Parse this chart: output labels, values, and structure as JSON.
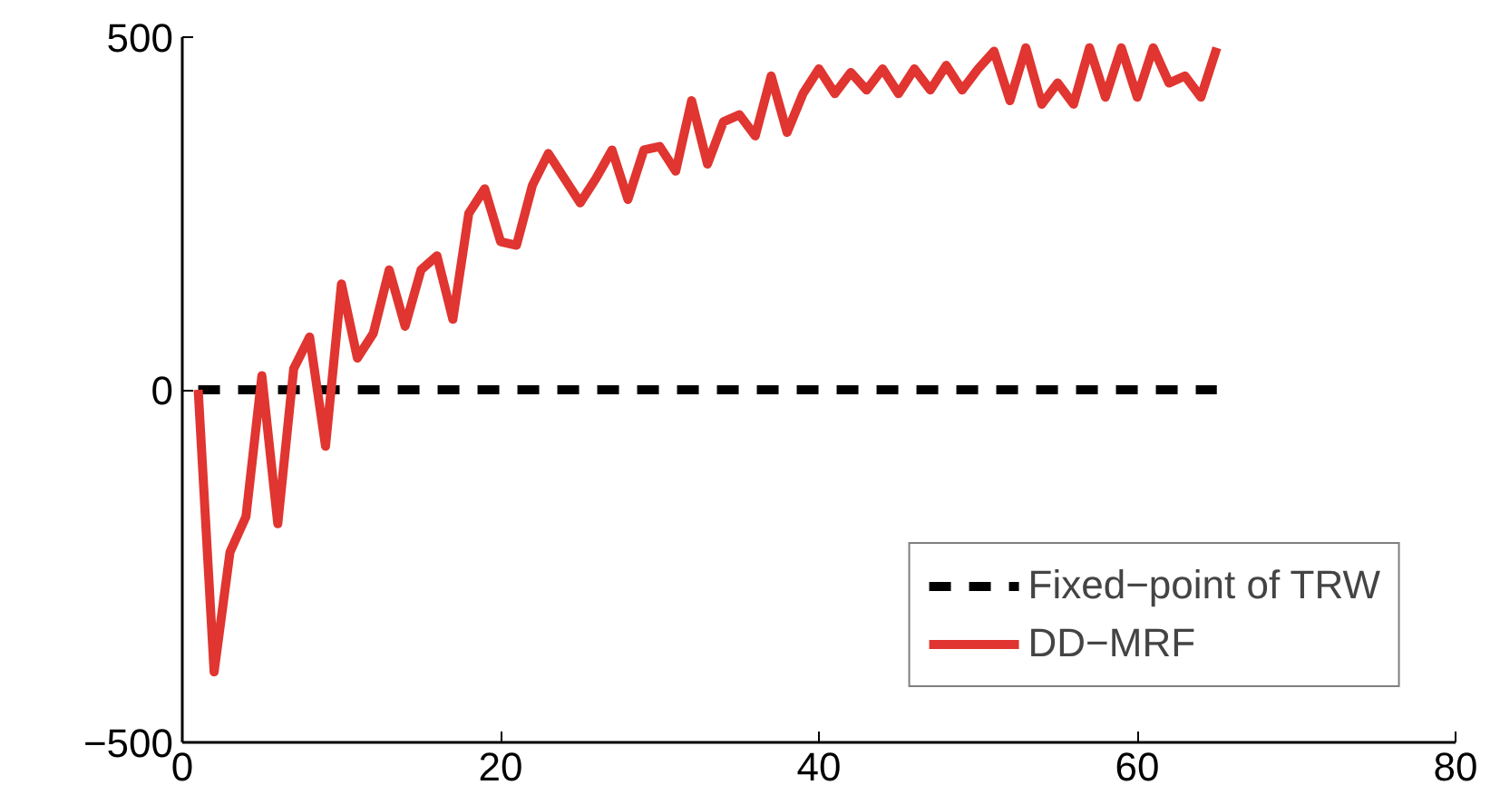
{
  "chart_data": {
    "type": "line",
    "xlim": [
      0,
      80
    ],
    "ylim": [
      -500,
      500
    ],
    "xticks": [
      0,
      20,
      40,
      60,
      80
    ],
    "yticks": [
      -500,
      0,
      500
    ],
    "grid": false,
    "legend": "bottom right",
    "series": [
      {
        "name": "Fixed−point of TRW",
        "color": "#000000",
        "line_style": "dashed",
        "x": [
          1,
          65
        ],
        "values": [
          0,
          0
        ]
      },
      {
        "name": "DD−MRF",
        "color": "#e03530",
        "line_style": "solid",
        "x": [
          1,
          2,
          3,
          4,
          5,
          6,
          7,
          8,
          9,
          10,
          11,
          12,
          13,
          14,
          15,
          16,
          17,
          18,
          19,
          20,
          21,
          22,
          23,
          24,
          25,
          26,
          27,
          28,
          29,
          30,
          31,
          32,
          33,
          34,
          35,
          36,
          37,
          38,
          39,
          40,
          41,
          42,
          43,
          44,
          45,
          46,
          47,
          48,
          49,
          50,
          51,
          52,
          53,
          54,
          55,
          56,
          57,
          58,
          59,
          60,
          61,
          62,
          63,
          64,
          65
        ],
        "values": [
          0,
          -400,
          -230,
          -180,
          20,
          -190,
          30,
          75,
          -80,
          150,
          45,
          80,
          170,
          90,
          170,
          190,
          100,
          250,
          285,
          210,
          205,
          290,
          335,
          300,
          265,
          300,
          340,
          270,
          340,
          345,
          310,
          410,
          320,
          380,
          390,
          360,
          445,
          365,
          420,
          455,
          420,
          450,
          425,
          455,
          420,
          455,
          425,
          460,
          425,
          455,
          480,
          410,
          485,
          405,
          435,
          405,
          485,
          415,
          485,
          415,
          485,
          435,
          445,
          415,
          485
        ]
      }
    ]
  }
}
